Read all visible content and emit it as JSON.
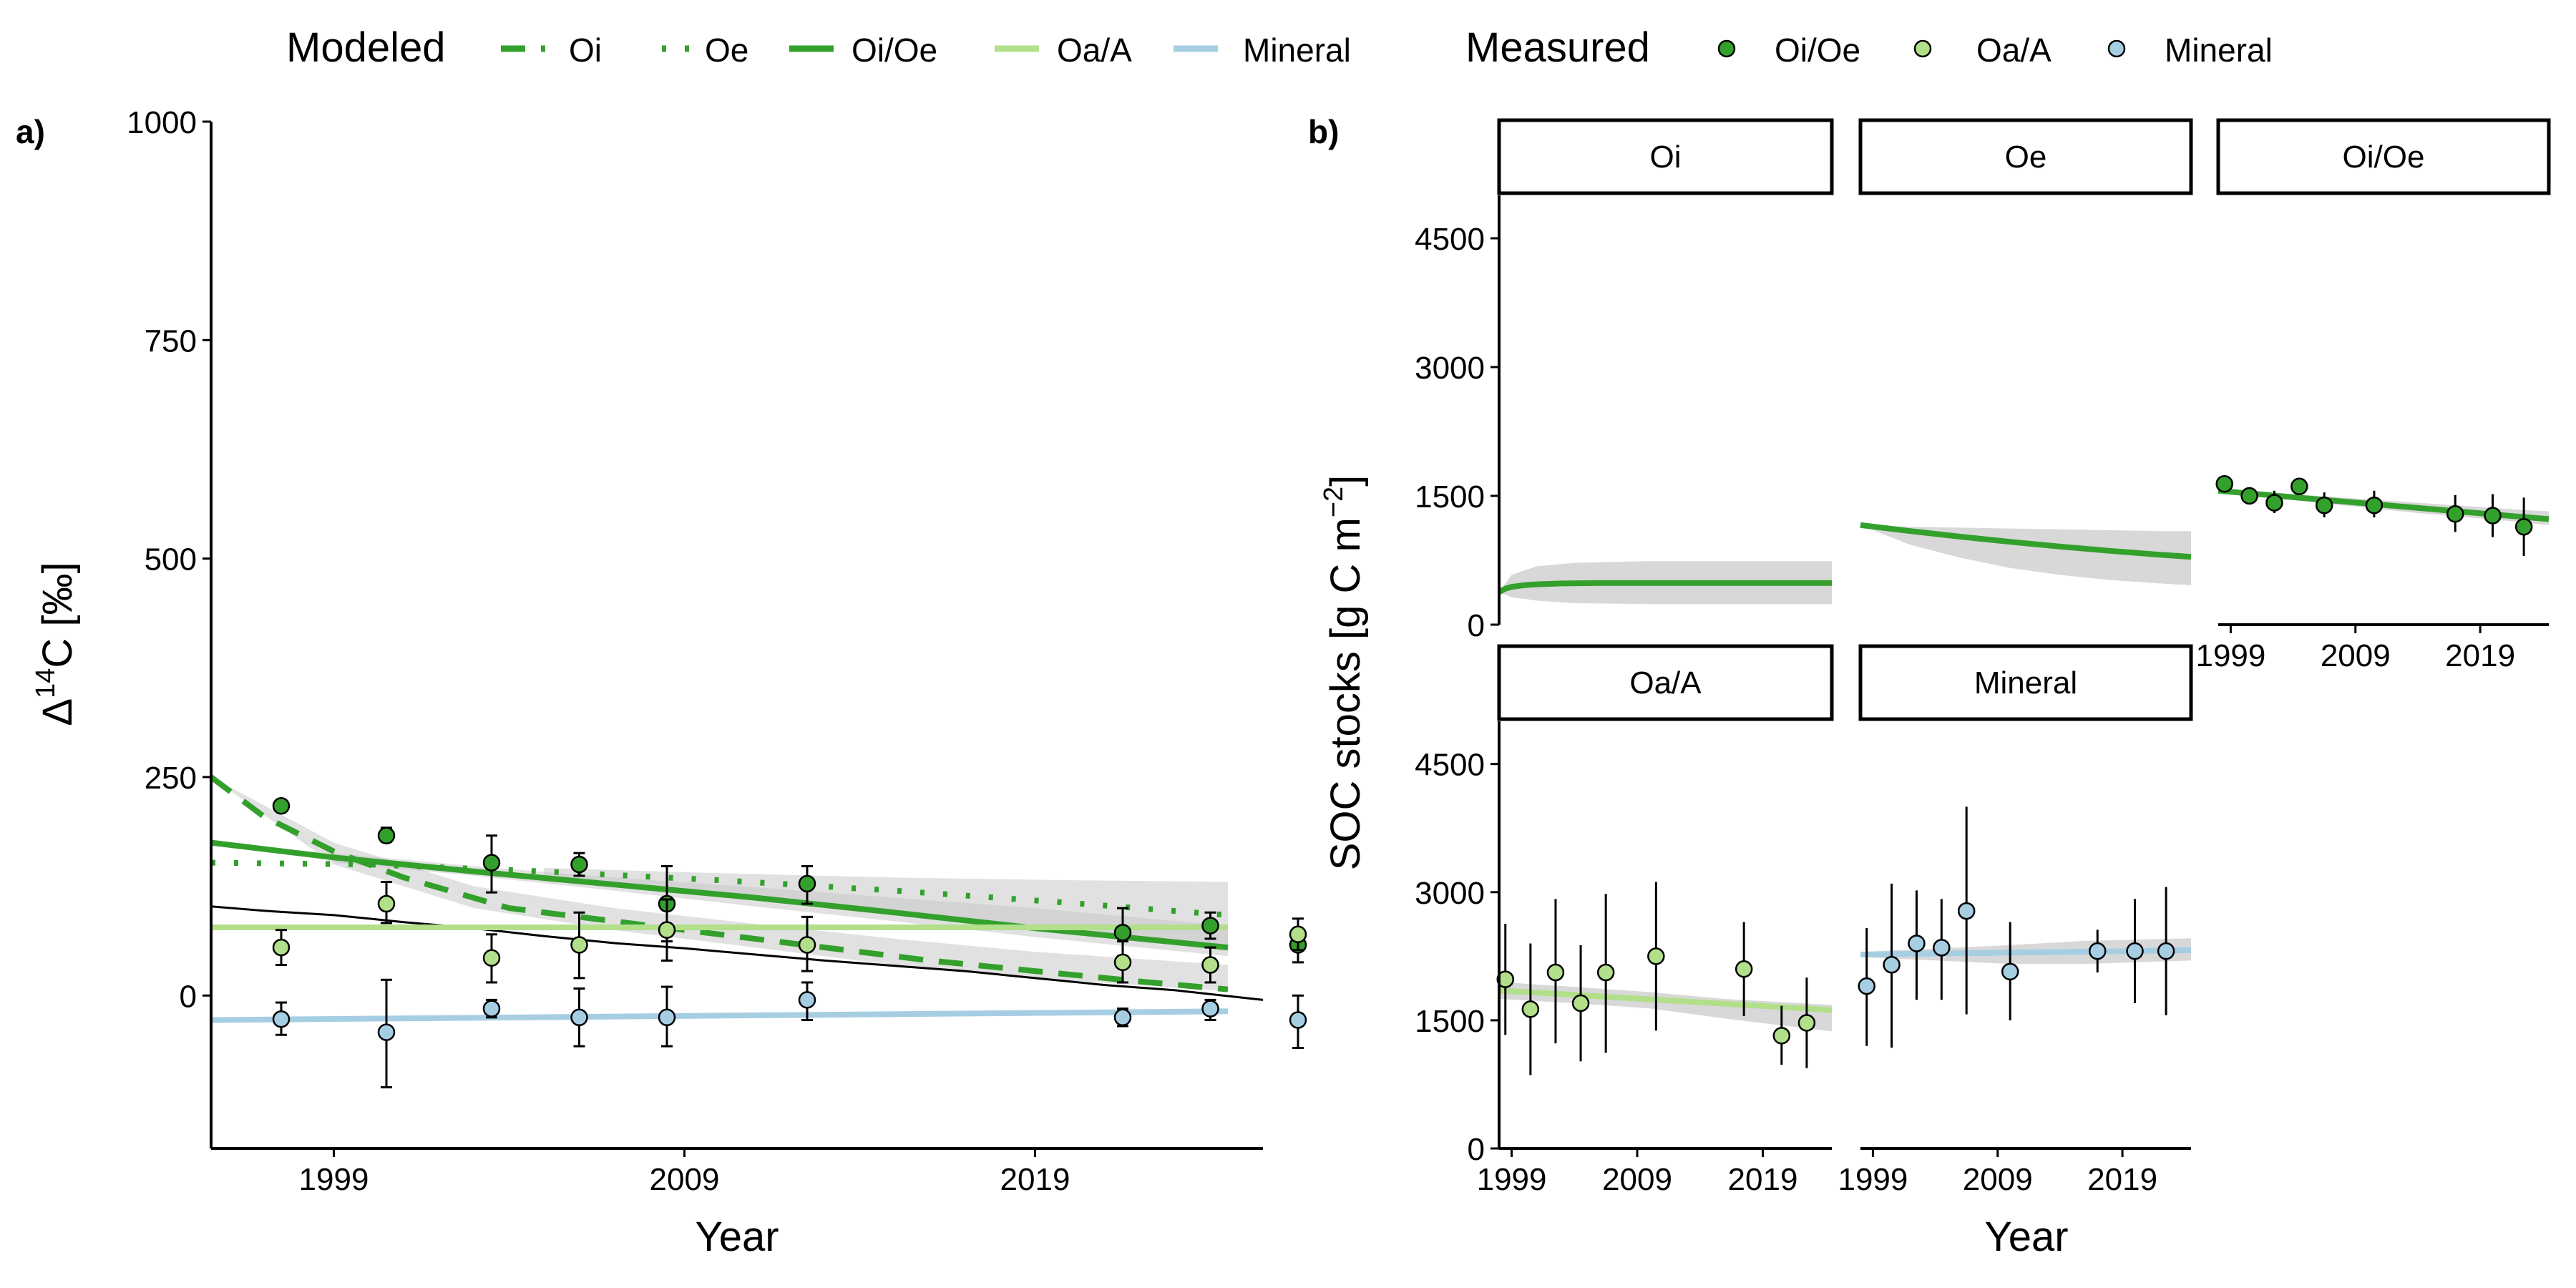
{
  "legend": {
    "modeled_title": "Modeled",
    "measured_title": "Measured",
    "modeled_items": [
      {
        "label": "Oi",
        "color": "#33a02c",
        "dash": "dashed"
      },
      {
        "label": "Oe",
        "color": "#33a02c",
        "dash": "dotted"
      },
      {
        "label": "Oi/Oe",
        "color": "#33a02c",
        "dash": "solid"
      },
      {
        "label": "Oa/A",
        "color": "#b2df8a",
        "dash": "solid"
      },
      {
        "label": "Mineral",
        "color": "#a6cee3",
        "dash": "solid"
      }
    ],
    "measured_items": [
      {
        "label": "Oi/Oe",
        "color": "#33a02c"
      },
      {
        "label": "Oa/A",
        "color": "#b2df8a"
      },
      {
        "label": "Mineral",
        "color": "#a6cee3"
      }
    ]
  },
  "colors": {
    "oi_oe": "#33a02c",
    "oa_a": "#b2df8a",
    "mineral": "#a6cee3",
    "band": "#c8c8c8",
    "atmosphere": "#000000"
  },
  "chart_data": [
    {
      "panel_label": "a)",
      "type": "line",
      "xlabel": "Year",
      "ylabel_main": "Δ",
      "ylabel_sup": "14",
      "ylabel_rest": "C [‰]",
      "xlim": [
        1995.5,
        2025.5
      ],
      "ylim": [
        -175,
        1000
      ],
      "xticks": [
        1999,
        2009,
        2019
      ],
      "yticks": [
        0,
        250,
        500,
        750,
        1000
      ],
      "grid": false,
      "modeled": [
        {
          "name": "Oi",
          "x": [
            1995.5,
            1997,
            1999,
            2001,
            2004,
            2007,
            2010,
            2013,
            2016,
            2019,
            2022,
            2024.5
          ],
          "y": [
            250,
            205,
            165,
            135,
            100,
            85,
            70,
            55,
            40,
            28,
            16,
            7
          ],
          "dash": "dashed"
        },
        {
          "name": "Oe",
          "x": [
            1995.5,
            2000,
            2005,
            2010,
            2015,
            2020,
            2024.5
          ],
          "y": [
            152,
            150,
            142,
            132,
            120,
            106,
            92
          ],
          "dash": "dotted"
        },
        {
          "name": "Oi/Oe",
          "x": [
            1995.5,
            1999,
            2003,
            2007,
            2011,
            2015,
            2019,
            2024.5
          ],
          "y": [
            175,
            158,
            142,
            127,
            112,
            95,
            77,
            55
          ],
          "dash": "solid"
        },
        {
          "name": "Oa/A",
          "x": [
            1995.5,
            2024.5
          ],
          "y": [
            78,
            78
          ],
          "dash": "solid"
        },
        {
          "name": "Mineral",
          "x": [
            1995.5,
            2024.5
          ],
          "y": [
            -28,
            -18
          ],
          "dash": "solid"
        }
      ],
      "uncertainty_bands": [
        {
          "series": "Oi",
          "x": [
            1995.5,
            1999,
            2003,
            2007,
            2011,
            2015,
            2019,
            2024.5
          ],
          "lower": [
            250,
            150,
            100,
            75,
            55,
            35,
            20,
            5
          ],
          "upper": [
            250,
            175,
            125,
            100,
            82,
            65,
            50,
            35
          ]
        },
        {
          "series": "Oe",
          "x": [
            2005,
            2010,
            2015,
            2020,
            2024.5
          ],
          "lower": [
            138,
            115,
            92,
            72,
            55
          ],
          "upper": [
            146,
            140,
            135,
            132,
            130
          ]
        },
        {
          "series": "Oi/Oe",
          "x": [
            1999,
            2003,
            2007,
            2011,
            2015,
            2019,
            2024.5
          ],
          "lower": [
            152,
            137,
            120,
            102,
            85,
            67,
            45
          ],
          "upper": [
            163,
            148,
            135,
            124,
            112,
            100,
            80
          ]
        }
      ],
      "atmosphere": {
        "x": [
          1995.5,
          1997,
          1999,
          2001,
          2003,
          2005,
          2007,
          2009,
          2011,
          2013,
          2015,
          2017,
          2019,
          2021,
          2023,
          2025.5
        ],
        "y": [
          102,
          97,
          92,
          84,
          77,
          68,
          60,
          54,
          47,
          40,
          34,
          28,
          20,
          12,
          6,
          -5
        ]
      },
      "measured": [
        {
          "name": "Oi/Oe",
          "points": [
            [
              1997.5,
              217,
              null,
              null
            ],
            [
              2000.5,
              183,
              176,
              192
            ],
            [
              2003.5,
              152,
              118,
              183
            ],
            [
              2006,
              150,
              137,
              163
            ],
            [
              2008.5,
              105,
              62,
              148
            ],
            [
              2012.5,
              128,
              105,
              148
            ],
            [
              2021.5,
              72,
              45,
              100
            ],
            [
              2024,
              80,
              65,
              95
            ],
            [
              2026.5,
              58,
              38,
              75
            ]
          ]
        },
        {
          "name": "Oa/A",
          "points": [
            [
              1997.5,
              55,
              35,
              75
            ],
            [
              2000.5,
              105,
              83,
              130
            ],
            [
              2003.5,
              43,
              15,
              70
            ],
            [
              2006,
              58,
              20,
              95
            ],
            [
              2008.5,
              75,
              40,
              110
            ],
            [
              2012.5,
              58,
              28,
              90
            ],
            [
              2021.5,
              38,
              15,
              62
            ],
            [
              2024,
              35,
              15,
              55
            ],
            [
              2026.5,
              70,
              52,
              88
            ]
          ]
        },
        {
          "name": "Mineral",
          "points": [
            [
              1997.5,
              -27,
              -45,
              -8
            ],
            [
              2000.5,
              -42,
              -105,
              18
            ],
            [
              2003.5,
              -15,
              -25,
              -5
            ],
            [
              2006,
              -25,
              -58,
              8
            ],
            [
              2008.5,
              -25,
              -58,
              10
            ],
            [
              2012.5,
              -5,
              -28,
              15
            ],
            [
              2021.5,
              -25,
              -35,
              -15
            ],
            [
              2024,
              -15,
              -28,
              -5
            ],
            [
              2026.5,
              -28,
              -60,
              0
            ]
          ]
        }
      ]
    },
    {
      "panel_label": "b)",
      "type": "line",
      "xlabel": "Year",
      "ylabel": "SOC stocks [g C m",
      "ylabel_sup": "−2",
      "ylabel_end": "]",
      "ylim": [
        0,
        5000
      ],
      "yticks": [
        0,
        1500,
        3000,
        4500
      ],
      "xticks": [
        1999,
        2009,
        2019
      ],
      "grid": false,
      "facets": [
        {
          "name": "Oi",
          "xlim": [
            1998,
            2024.5
          ],
          "xticks_shown": false,
          "line": {
            "color": "#33a02c",
            "x": [
              1998,
              1998.5,
              1999,
              2000,
              2001,
              2003,
              2006,
              2010,
              2015,
              2020,
              2024.5
            ],
            "y": [
              380,
              420,
              440,
              460,
              470,
              480,
              485,
              485,
              485,
              485,
              485
            ]
          },
          "band": {
            "x": [
              1998,
              1999,
              2001,
              2004,
              2010,
              2024.5
            ],
            "lower": [
              380,
              320,
              280,
              250,
              240,
              240
            ],
            "upper": [
              380,
              580,
              680,
              720,
              740,
              740
            ]
          },
          "points": []
        },
        {
          "name": "Oe",
          "xlim": [
            1998,
            2024.5
          ],
          "xticks_shown": false,
          "line": {
            "color": "#33a02c",
            "x": [
              1998,
              2002,
              2006,
              2010,
              2014,
              2018,
              2022,
              2024.5
            ],
            "y": [
              1160,
              1090,
              1025,
              965,
              910,
              860,
              815,
              790
            ]
          },
          "band": {
            "x": [
              1998,
              2002,
              2006,
              2010,
              2014,
              2018,
              2022,
              2024.5
            ],
            "lower": [
              1160,
              930,
              780,
              660,
              580,
              520,
              480,
              460
            ],
            "upper": [
              1160,
              1140,
              1130,
              1120,
              1110,
              1100,
              1090,
              1090
            ]
          },
          "points": []
        },
        {
          "name": "Oi/Oe",
          "xlim": [
            1998,
            2024.5
          ],
          "xticks_shown": true,
          "line": {
            "color": "#33a02c",
            "x": [
              1998,
              2002,
              2006,
              2010,
              2014,
              2018,
              2022,
              2024.5
            ],
            "y": [
              1560,
              1510,
              1460,
              1410,
              1360,
              1310,
              1260,
              1230
            ]
          },
          "band": {
            "x": [
              1998,
              2002,
              2006,
              2010,
              2014,
              2018,
              2022,
              2024.5
            ],
            "lower": [
              1540,
              1480,
              1420,
              1360,
              1300,
              1250,
              1200,
              1160
            ],
            "upper": [
              1580,
              1540,
              1500,
              1460,
              1420,
              1380,
              1340,
              1320
            ]
          },
          "points": {
            "color": "#33a02c",
            "data": [
              [
                1998.5,
                1640,
                null,
                null
              ],
              [
                2000.5,
                1500,
                null,
                null
              ],
              [
                2002.5,
                1420,
                1300,
                1560
              ],
              [
                2004.5,
                1610,
                1520,
                1700
              ],
              [
                2006.5,
                1390,
                1250,
                1540
              ],
              [
                2010.5,
                1390,
                1250,
                1560
              ],
              [
                2017,
                1290,
                1080,
                1510
              ],
              [
                2020,
                1270,
                1020,
                1520
              ],
              [
                2022.5,
                1140,
                800,
                1480
              ]
            ]
          }
        },
        {
          "name": "Oa/A",
          "xlim": [
            1998,
            2024.5
          ],
          "xticks_shown": true,
          "line": {
            "color": "#b2df8a",
            "x": [
              1998,
              2024.5
            ],
            "y": [
              1850,
              1620
            ]
          },
          "band": {
            "x": [
              1998,
              2004,
              2010,
              2016,
              2024.5
            ],
            "lower": [
              1750,
              1700,
              1640,
              1520,
              1370
            ],
            "upper": [
              1950,
              1890,
              1830,
              1750,
              1680
            ]
          },
          "points": {
            "color": "#b2df8a",
            "data": [
              [
                1998.5,
                1980,
                1330,
                2630
              ],
              [
                2000.5,
                1630,
                860,
                2400
              ],
              [
                2002.5,
                2060,
                1230,
                2920
              ],
              [
                2004.5,
                1700,
                1020,
                2380
              ],
              [
                2006.5,
                2060,
                1120,
                2980
              ],
              [
                2010.5,
                2250,
                1380,
                3120
              ],
              [
                2017.5,
                2100,
                1550,
                2650
              ],
              [
                2020.5,
                1320,
                980,
                1670
              ],
              [
                2022.5,
                1470,
                940,
                2000
              ]
            ]
          }
        },
        {
          "name": "Mineral",
          "xlim": [
            1998,
            2024.5
          ],
          "xticks_shown": true,
          "line": {
            "color": "#a6cee3",
            "x": [
              1998,
              2024.5
            ],
            "y": [
              2270,
              2320
            ]
          },
          "band": {
            "x": [
              1998,
              2004,
              2010,
              2016,
              2024.5
            ],
            "lower": [
              2240,
              2200,
              2160,
              2160,
              2200
            ],
            "upper": [
              2300,
              2340,
              2380,
              2430,
              2460
            ]
          },
          "points": {
            "color": "#a6cee3",
            "data": [
              [
                1998.5,
                1900,
                1200,
                2580
              ],
              [
                2000.5,
                2150,
                1180,
                3100
              ],
              [
                2002.5,
                2400,
                1740,
                3020
              ],
              [
                2004.5,
                2350,
                1740,
                2920
              ],
              [
                2006.5,
                2780,
                1570,
                4000
              ],
              [
                2010,
                2070,
                1500,
                2650
              ],
              [
                2017,
                2310,
                2060,
                2560
              ],
              [
                2020,
                2310,
                1700,
                2920
              ],
              [
                2022.5,
                2310,
                1560,
                3060
              ]
            ]
          }
        }
      ]
    }
  ]
}
